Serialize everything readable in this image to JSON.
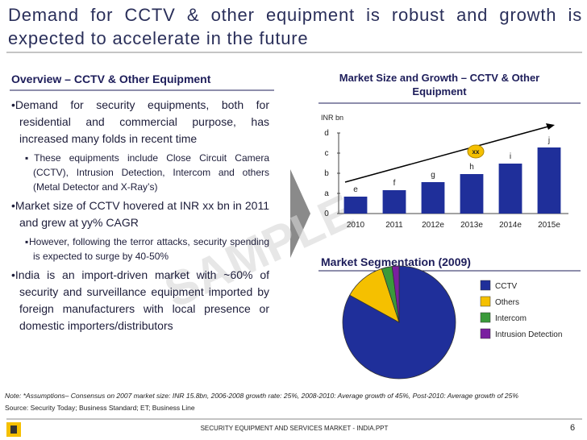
{
  "header": {
    "title": "Demand for CCTV & other equipment is robust and growth is expected to accelerate in the future"
  },
  "overview": {
    "heading": "Overview – CCTV & Other Equipment",
    "bullets": [
      {
        "level": 1,
        "text": "Demand for security equipments, both for residential and commercial purpose, has increased many folds in recent time"
      },
      {
        "level": 2,
        "text": "These equipments include Close Circuit Camera (CCTV), Intrusion Detection, Intercom and others (Metal Detector and X-Ray’s)"
      },
      {
        "level": 1,
        "text": "Market size of CCTV hovered at INR xx bn in 2011 and grew at yy% CAGR"
      },
      {
        "level": 2,
        "text": "However, following the terror attacks, security spending is expected to surge by 40-50%"
      },
      {
        "level": 1,
        "text": "India is an import-driven market with ~60% of security and surveillance equipment imported by foreign manufacturers with local presence or domestic importers/distributors"
      }
    ]
  },
  "watermark": "SAMPLE",
  "chart_data": [
    {
      "type": "bar",
      "title": "Market Size and Growth – CCTV & Other Equipment",
      "y_label": "INR bn",
      "categories": [
        "2010",
        "2011",
        "2012e",
        "2013e",
        "2014e",
        "2015e"
      ],
      "values": [
        0.84,
        1.16,
        1.56,
        1.96,
        2.48,
        3.28
      ],
      "bar_labels": [
        "e",
        "f",
        "g",
        "h",
        "i",
        "j"
      ],
      "annotation": "xx",
      "color": "#1f2f9a",
      "ylim": [
        0,
        4
      ],
      "yticks": [
        0,
        {
          "value": 1,
          "label": "a"
        },
        {
          "value": 2,
          "label": "b"
        },
        {
          "value": 3,
          "label": "c"
        },
        {
          "value": 4,
          "label": "d"
        }
      ]
    },
    {
      "type": "pie",
      "title": "Market Segmentation (2009)",
      "categories": [
        "CCTV",
        "Others",
        "Intercom",
        "Intrusion Detection"
      ],
      "values": [
        83,
        12,
        3,
        2
      ],
      "colors": [
        "#1f2f9a",
        "#f5c000",
        "#3a9a3a",
        "#7a1fa0"
      ]
    }
  ],
  "notes": {
    "note": "Note: *Assumptions– Consensus on 2007 market size: INR 15.8bn, 2006-2008 growth rate: 25%, 2008-2010: Average growth of 45%, Post-2010: Average growth of 25%",
    "source": "Source: Security Today; Business Standard; ET; Business Line"
  },
  "footer": {
    "text": "SECURITY EQUIPMENT AND SERVICES MARKET - INDIA.PPT",
    "page": "6"
  }
}
